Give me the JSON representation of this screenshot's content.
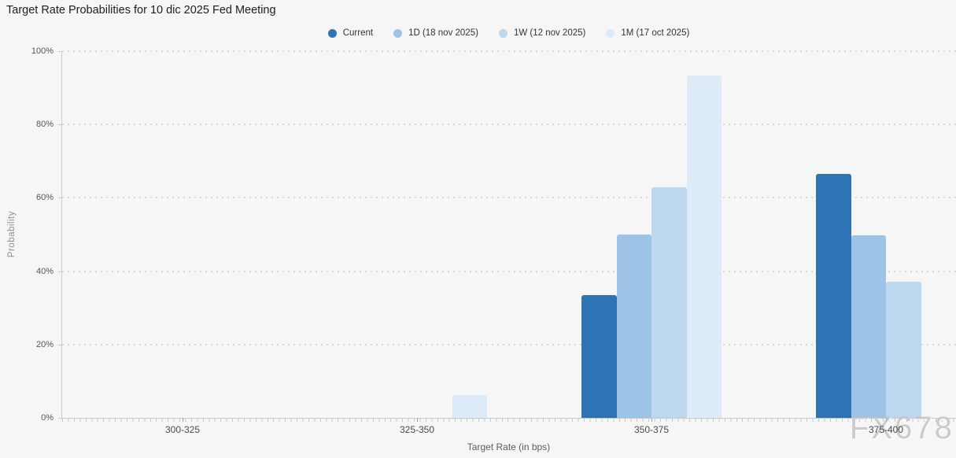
{
  "title": "Target Rate Probabilities for 10 dic 2025 Fed Meeting",
  "watermark": "FX678",
  "colors": {
    "background": "#f6f6f6",
    "axis_line": "#c9c9c9",
    "gridline": "#d8d8d8",
    "series_current": "#2e74b5",
    "series_1d": "#9dc3e6",
    "series_1w": "#bdd7ee",
    "series_1m": "#dcebf7"
  },
  "legend": {
    "items": [
      {
        "label": "Current",
        "color": "#2e74b5"
      },
      {
        "label": "1D (18 nov 2025)",
        "color": "#9dc3e6"
      },
      {
        "label": "1W (12 nov 2025)",
        "color": "#bdd7ee"
      },
      {
        "label": "1M (17 oct 2025)",
        "color": "#dcebf7"
      }
    ]
  },
  "chart_data": {
    "type": "bar",
    "title": "Target Rate Probabilities for 10 dic 2025 Fed Meeting",
    "categories": [
      "300-325",
      "325-350",
      "350-375",
      "375-400"
    ],
    "series": [
      {
        "name": "Current",
        "color": "#2e74b5",
        "values": [
          0,
          0,
          33.5,
          66.5
        ]
      },
      {
        "name": "1D (18 nov 2025)",
        "color": "#9dc3e6",
        "values": [
          0,
          0,
          50.1,
          49.9
        ]
      },
      {
        "name": "1W (12 nov 2025)",
        "color": "#bdd7ee",
        "values": [
          0,
          0,
          62.8,
          37.1
        ]
      },
      {
        "name": "1M (17 oct 2025)",
        "color": "#dcebf7",
        "values": [
          0,
          6.3,
          93.4,
          0
        ]
      }
    ],
    "xlabel": "Target Rate (in bps)",
    "ylabel": "Probability",
    "ylim": [
      0,
      100
    ],
    "yticks": [
      "0%",
      "20%",
      "40%",
      "60%",
      "80%",
      "100%"
    ],
    "grid": "dotted-horizontal",
    "legend_position": "top-center"
  }
}
